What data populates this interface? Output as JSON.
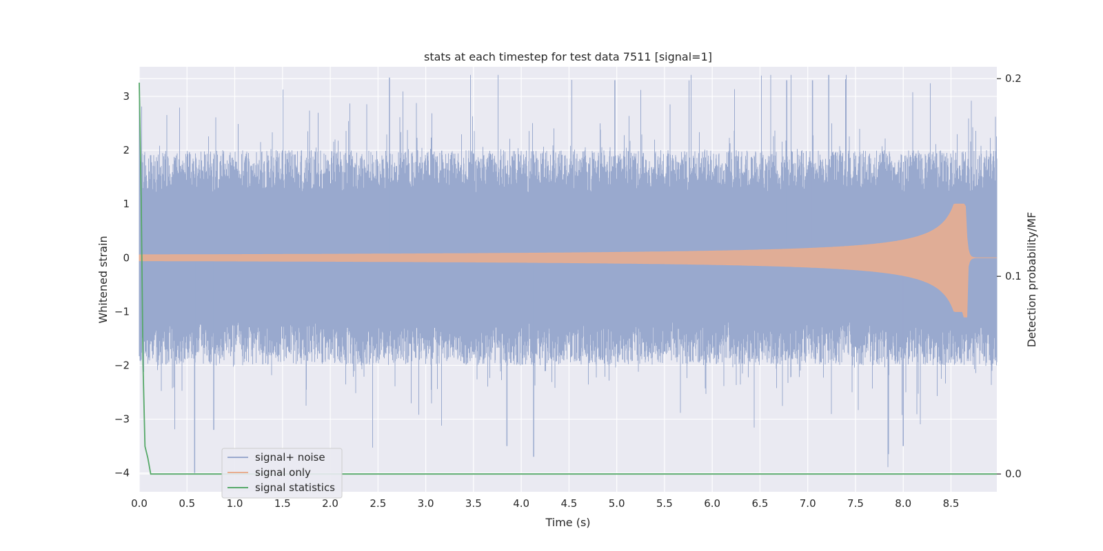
{
  "chart_data": {
    "type": "line",
    "title": "stats at each timestep for test data 7511 [signal=1]",
    "xlabel": "Time (s)",
    "ylabel": "Whitened strain",
    "y2label": "Detection probability/MF",
    "xlim": [
      0.0,
      8.98
    ],
    "ylim": [
      -4.35,
      3.55
    ],
    "y2lim": [
      -0.009,
      0.206
    ],
    "xticks": [
      "0.0",
      "0.5",
      "1.0",
      "1.5",
      "2.0",
      "2.5",
      "3.0",
      "3.5",
      "4.0",
      "4.5",
      "5.0",
      "5.5",
      "6.0",
      "6.5",
      "7.0",
      "7.5",
      "8.0",
      "8.5"
    ],
    "yticks": [
      "3",
      "2",
      "1",
      "0",
      "−1",
      "−2",
      "−3",
      "−4"
    ],
    "y2ticks": [
      "0.2",
      "0.1",
      "0.0"
    ],
    "grid": true,
    "legend_position": "lower-left",
    "series": [
      {
        "name": "signal+ noise",
        "color": "#99a9ce",
        "kind": "noise-band",
        "x_range": [
          0.0,
          8.98
        ],
        "typical_amplitude": 1.6,
        "notable_min": -4.0,
        "notable_max": 3.4
      },
      {
        "name": "signal only",
        "color": "#e8ad90",
        "kind": "chirp",
        "x_range": [
          0.0,
          8.98
        ],
        "peak_time": 8.65,
        "peak_amplitude": 1.0,
        "min_amplitude": -1.1
      },
      {
        "name": "signal statistics",
        "color": "#55a868",
        "kind": "line",
        "axis": "secondary",
        "x": [
          0.0,
          0.02,
          0.04,
          0.06,
          0.09,
          0.12,
          8.98
        ],
        "values": [
          0.198,
          0.14,
          0.055,
          0.014,
          0.008,
          0.0,
          0.0
        ]
      }
    ]
  }
}
